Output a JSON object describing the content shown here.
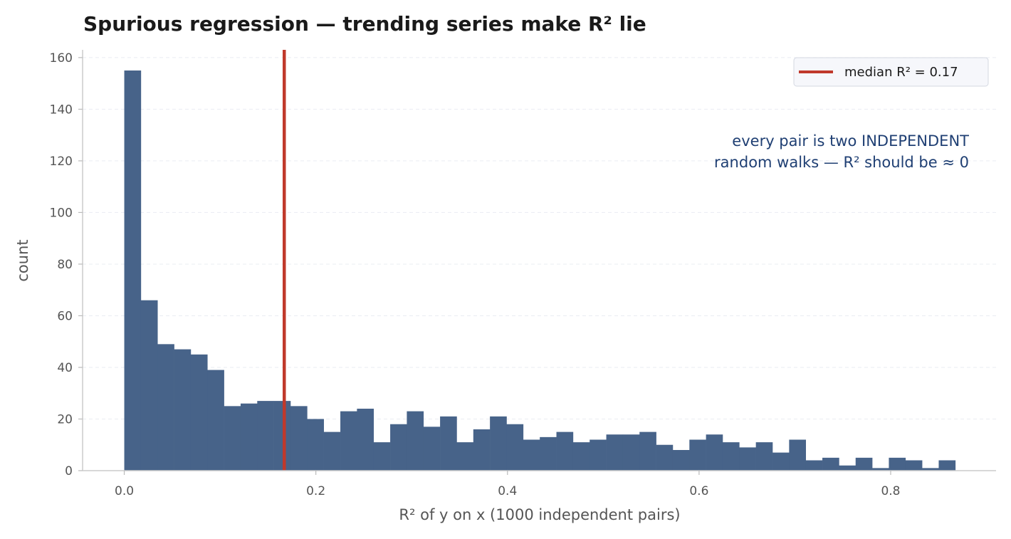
{
  "chart_data": {
    "type": "bar",
    "title": "Spurious regression — trending series make R² lie",
    "xlabel": "R² of y on x (1000 independent pairs)",
    "ylabel": "count",
    "xlim": [
      -0.0435,
      0.91
    ],
    "ylim": [
      0,
      163
    ],
    "xticks": [
      0.0,
      0.2,
      0.4,
      0.6,
      0.8
    ],
    "xtick_labels": [
      "0.0",
      "0.2",
      "0.4",
      "0.6",
      "0.8"
    ],
    "yticks": [
      0,
      20,
      40,
      60,
      80,
      100,
      120,
      140,
      160
    ],
    "ytick_labels": [
      "0",
      "20",
      "40",
      "60",
      "80",
      "100",
      "120",
      "140",
      "160"
    ],
    "grid": "y-dashed",
    "bin_start": 0.0,
    "bin_width": 0.01735,
    "series": [
      {
        "color": "#476389",
        "values": [
          155,
          66,
          49,
          47,
          45,
          39,
          25,
          26,
          27,
          27,
          25,
          20,
          15,
          23,
          24,
          11,
          18,
          23,
          17,
          21,
          11,
          16,
          21,
          18,
          12,
          13,
          15,
          11,
          12,
          14,
          14,
          15,
          10,
          8,
          12,
          14,
          11,
          9,
          11,
          7,
          12,
          4,
          5,
          2,
          5,
          1,
          5,
          4,
          1,
          4
        ]
      }
    ],
    "median_line": {
      "value": 0.167,
      "color": "#c0392b"
    },
    "legend": {
      "position": "top-right",
      "label": "median R² = 0.17"
    },
    "annotation": [
      "every pair is two INDEPENDENT",
      "random walks — R² should be ≈ 0"
    ]
  }
}
